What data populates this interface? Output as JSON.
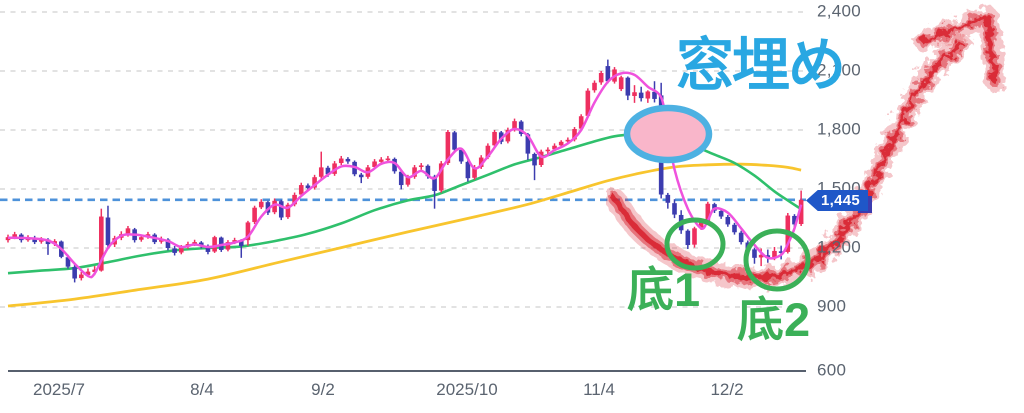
{
  "chart_data": {
    "type": "candlestick",
    "title": "",
    "y_axis": {
      "labels": [
        "2,400",
        "2,100",
        "1,800",
        "1,500",
        "1,200",
        "900",
        "600"
      ],
      "values": [
        2400,
        2100,
        1800,
        1500,
        1200,
        900,
        600
      ],
      "range": [
        600,
        2400
      ],
      "gridlines": "dashed"
    },
    "x_axis": {
      "labels": [
        "2025/7",
        "8/4",
        "9/2",
        "2025/10",
        "11/4",
        "12/2"
      ]
    },
    "current_price": {
      "label": "1,445",
      "value": 1445
    },
    "target_line_value": 1445,
    "candles": [
      [
        1240,
        1268,
        1228,
        1255
      ],
      [
        1255,
        1282,
        1245,
        1270
      ],
      [
        1268,
        1275,
        1228,
        1240
      ],
      [
        1240,
        1265,
        1232,
        1255
      ],
      [
        1253,
        1262,
        1220,
        1230
      ],
      [
        1232,
        1255,
        1222,
        1245
      ],
      [
        1243,
        1250,
        1165,
        1220
      ],
      [
        1222,
        1245,
        1210,
        1235
      ],
      [
        1233,
        1238,
        1148,
        1155
      ],
      [
        1153,
        1165,
        1095,
        1105
      ],
      [
        1103,
        1118,
        1025,
        1045
      ],
      [
        1047,
        1078,
        1035,
        1065
      ],
      [
        1063,
        1096,
        1052,
        1080
      ],
      [
        1078,
        1108,
        1062,
        1090
      ],
      [
        1085,
        1400,
        1080,
        1360
      ],
      [
        1355,
        1415,
        1205,
        1215
      ],
      [
        1218,
        1262,
        1205,
        1250
      ],
      [
        1252,
        1285,
        1240,
        1270
      ],
      [
        1268,
        1312,
        1258,
        1300
      ],
      [
        1295,
        1302,
        1228,
        1240
      ],
      [
        1242,
        1268,
        1232,
        1255
      ],
      [
        1257,
        1282,
        1247,
        1270
      ],
      [
        1268,
        1275,
        1220,
        1230
      ],
      [
        1232,
        1258,
        1222,
        1245
      ],
      [
        1243,
        1250,
        1188,
        1200
      ],
      [
        1198,
        1210,
        1162,
        1175
      ],
      [
        1177,
        1215,
        1168,
        1205
      ],
      [
        1207,
        1232,
        1196,
        1220
      ],
      [
        1222,
        1242,
        1210,
        1230
      ],
      [
        1228,
        1235,
        1198,
        1210
      ],
      [
        1208,
        1218,
        1168,
        1180
      ],
      [
        1182,
        1262,
        1175,
        1255
      ],
      [
        1253,
        1258,
        1180,
        1190
      ],
      [
        1192,
        1240,
        1183,
        1230
      ],
      [
        1232,
        1252,
        1220,
        1240
      ],
      [
        1238,
        1245,
        1150,
        1210
      ],
      [
        1240,
        1338,
        1212,
        1330
      ],
      [
        1332,
        1415,
        1322,
        1405
      ],
      [
        1407,
        1448,
        1398,
        1435
      ],
      [
        1433,
        1440,
        1368,
        1380
      ],
      [
        1382,
        1452,
        1372,
        1440
      ],
      [
        1438,
        1445,
        1342,
        1355
      ],
      [
        1357,
        1430,
        1348,
        1420
      ],
      [
        1422,
        1482,
        1412,
        1470
      ],
      [
        1472,
        1532,
        1462,
        1520
      ],
      [
        1518,
        1528,
        1492,
        1505
      ],
      [
        1507,
        1572,
        1497,
        1560
      ],
      [
        1562,
        1690,
        1552,
        1610
      ],
      [
        1608,
        1618,
        1562,
        1575
      ],
      [
        1577,
        1642,
        1567,
        1630
      ],
      [
        1632,
        1668,
        1622,
        1655
      ],
      [
        1653,
        1662,
        1628,
        1640
      ],
      [
        1638,
        1645,
        1565,
        1575
      ],
      [
        1573,
        1582,
        1530,
        1560
      ],
      [
        1562,
        1622,
        1552,
        1610
      ],
      [
        1612,
        1652,
        1602,
        1640
      ],
      [
        1638,
        1662,
        1628,
        1650
      ],
      [
        1652,
        1668,
        1642,
        1655
      ],
      [
        1653,
        1660,
        1578,
        1590
      ],
      [
        1588,
        1595,
        1498,
        1520
      ],
      [
        1522,
        1572,
        1512,
        1560
      ],
      [
        1562,
        1622,
        1552,
        1610
      ],
      [
        1612,
        1632,
        1598,
        1620
      ],
      [
        1618,
        1625,
        1552,
        1565
      ],
      [
        1563,
        1572,
        1400,
        1490
      ],
      [
        1492,
        1642,
        1482,
        1630
      ],
      [
        1632,
        1800,
        1622,
        1790
      ],
      [
        1788,
        1795,
        1685,
        1700
      ],
      [
        1698,
        1705,
        1628,
        1640
      ],
      [
        1638,
        1645,
        1538,
        1555
      ],
      [
        1557,
        1622,
        1547,
        1610
      ],
      [
        1612,
        1672,
        1602,
        1660
      ],
      [
        1662,
        1732,
        1652,
        1720
      ],
      [
        1722,
        1800,
        1712,
        1790
      ],
      [
        1788,
        1795,
        1728,
        1740
      ],
      [
        1742,
        1812,
        1732,
        1800
      ],
      [
        1802,
        1858,
        1792,
        1845
      ],
      [
        1843,
        1850,
        1768,
        1780
      ],
      [
        1778,
        1785,
        1648,
        1680
      ],
      [
        1678,
        1685,
        1545,
        1620
      ],
      [
        1622,
        1700,
        1612,
        1690
      ],
      [
        1692,
        1712,
        1678,
        1700
      ],
      [
        1702,
        1732,
        1692,
        1720
      ],
      [
        1722,
        1748,
        1712,
        1740
      ],
      [
        1742,
        1762,
        1728,
        1750
      ],
      [
        1752,
        1815,
        1742,
        1805
      ],
      [
        1807,
        1880,
        1797,
        1870
      ],
      [
        1872,
        2012,
        1862,
        2000
      ],
      [
        2002,
        2052,
        1990,
        2040
      ],
      [
        2042,
        2100,
        2030,
        2090
      ],
      [
        2125,
        2158,
        2038,
        2048
      ],
      [
        2046,
        2120,
        2036,
        2108
      ],
      [
        2008,
        2076,
        1998,
        2068
      ],
      [
        2066,
        2072,
        1952,
        1975
      ],
      [
        1973,
        2028,
        1938,
        1992
      ],
      [
        1990,
        2020,
        1945,
        1962
      ],
      [
        1960,
        2002,
        1938,
        1996
      ],
      [
        1994,
        2048,
        1940,
        1958
      ],
      [
        1976,
        2040,
        1452,
        1472
      ],
      [
        1470,
        1480,
        1400,
        1430
      ],
      [
        1428,
        1448,
        1352,
        1370
      ],
      [
        1368,
        1392,
        1272,
        1290
      ],
      [
        1288,
        1295,
        1195,
        1215
      ],
      [
        1217,
        1308,
        1202,
        1300
      ],
      [
        1302,
        1345,
        1292,
        1335
      ],
      [
        1337,
        1435,
        1327,
        1425
      ],
      [
        1423,
        1430,
        1378,
        1390
      ],
      [
        1388,
        1398,
        1348,
        1360
      ],
      [
        1358,
        1368,
        1308,
        1320
      ],
      [
        1318,
        1328,
        1268,
        1280
      ],
      [
        1278,
        1288,
        1218,
        1230
      ],
      [
        1228,
        1238,
        1182,
        1195
      ],
      [
        1193,
        1202,
        1120,
        1150
      ],
      [
        1152,
        1198,
        1108,
        1165
      ],
      [
        1163,
        1192,
        1125,
        1150
      ],
      [
        1152,
        1205,
        1138,
        1185
      ],
      [
        1183,
        1212,
        1142,
        1175
      ],
      [
        1180,
        1378,
        1172,
        1365
      ],
      [
        1363,
        1372,
        1305,
        1320
      ],
      [
        1322,
        1492,
        1312,
        1445
      ]
    ],
    "moving_averages": [
      {
        "name": "ma_short",
        "color": "#ef52dd",
        "points": [
          [
            0,
            1252
          ],
          [
            3,
            1250
          ],
          [
            6,
            1238
          ],
          [
            8,
            1195
          ],
          [
            10,
            1120
          ],
          [
            12,
            1058
          ],
          [
            13,
            1070
          ],
          [
            15,
            1200
          ],
          [
            17,
            1262
          ],
          [
            19,
            1268
          ],
          [
            21,
            1258
          ],
          [
            24,
            1235
          ],
          [
            26,
            1205
          ],
          [
            28,
            1218
          ],
          [
            30,
            1205
          ],
          [
            32,
            1215
          ],
          [
            34,
            1228
          ],
          [
            36,
            1258
          ],
          [
            38,
            1360
          ],
          [
            40,
            1420
          ],
          [
            42,
            1405
          ],
          [
            44,
            1465
          ],
          [
            46,
            1520
          ],
          [
            48,
            1572
          ],
          [
            50,
            1615
          ],
          [
            52,
            1612
          ],
          [
            54,
            1585
          ],
          [
            56,
            1628
          ],
          [
            58,
            1632
          ],
          [
            60,
            1560
          ],
          [
            62,
            1592
          ],
          [
            64,
            1555
          ],
          [
            66,
            1650
          ],
          [
            68,
            1705
          ],
          [
            70,
            1605
          ],
          [
            72,
            1665
          ],
          [
            74,
            1755
          ],
          [
            76,
            1805
          ],
          [
            78,
            1770
          ],
          [
            80,
            1665
          ],
          [
            82,
            1698
          ],
          [
            84,
            1732
          ],
          [
            86,
            1800
          ],
          [
            88,
            1940
          ],
          [
            90,
            2045
          ],
          [
            92,
            2088
          ],
          [
            94,
            2080
          ],
          [
            96,
            2020
          ],
          [
            98,
            1965
          ],
          [
            99,
            1800
          ],
          [
            100,
            1600
          ],
          [
            102,
            1400
          ],
          [
            104,
            1300
          ],
          [
            105,
            1340
          ],
          [
            106,
            1400
          ],
          [
            108,
            1380
          ],
          [
            110,
            1300
          ],
          [
            112,
            1215
          ],
          [
            114,
            1150
          ],
          [
            116,
            1165
          ],
          [
            117,
            1220
          ],
          [
            118,
            1300
          ],
          [
            119,
            1420
          ]
        ]
      },
      {
        "name": "ma_mid",
        "color": "#2fc06c",
        "points": [
          [
            0,
            1072
          ],
          [
            5,
            1085
          ],
          [
            10,
            1098
          ],
          [
            15,
            1128
          ],
          [
            20,
            1162
          ],
          [
            25,
            1188
          ],
          [
            30,
            1200
          ],
          [
            35,
            1208
          ],
          [
            40,
            1235
          ],
          [
            45,
            1272
          ],
          [
            50,
            1325
          ],
          [
            55,
            1392
          ],
          [
            60,
            1442
          ],
          [
            64,
            1468
          ],
          [
            68,
            1520
          ],
          [
            72,
            1572
          ],
          [
            76,
            1625
          ],
          [
            80,
            1662
          ],
          [
            84,
            1702
          ],
          [
            88,
            1742
          ],
          [
            91,
            1768
          ],
          [
            94,
            1778
          ],
          [
            97,
            1778
          ],
          [
            100,
            1758
          ],
          [
            103,
            1718
          ],
          [
            106,
            1675
          ],
          [
            109,
            1632
          ],
          [
            112,
            1568
          ],
          [
            115,
            1488
          ],
          [
            117,
            1442
          ],
          [
            119,
            1398
          ]
        ]
      },
      {
        "name": "ma_long",
        "color": "#f8c52e",
        "points": [
          [
            0,
            905
          ],
          [
            10,
            940
          ],
          [
            20,
            990
          ],
          [
            30,
            1042
          ],
          [
            40,
            1122
          ],
          [
            50,
            1202
          ],
          [
            60,
            1282
          ],
          [
            70,
            1358
          ],
          [
            78,
            1422
          ],
          [
            85,
            1492
          ],
          [
            90,
            1542
          ],
          [
            95,
            1582
          ],
          [
            100,
            1612
          ],
          [
            105,
            1623
          ],
          [
            110,
            1626
          ],
          [
            114,
            1620
          ],
          [
            117,
            1610
          ],
          [
            119,
            1596
          ]
        ]
      }
    ],
    "colors": {
      "up_candle": "#ee2f5f",
      "down_candle": "#3c3caf",
      "grid": "#d8d8d8",
      "axis": "#57606e",
      "target_line": "#4e92da",
      "label": "#5b6470",
      "tag_bg": "#1f57c8",
      "tag_text": "#ffffff"
    },
    "annotations": {
      "gap_label": "窓埋め",
      "bottom1_label": "底1",
      "bottom2_label": "底2",
      "gap_text_color": "#29a7e2",
      "gap_ellipse_fill": "#f9b6ca",
      "gap_ellipse_stroke": "#4db1e2",
      "bottom_color": "#3bb058",
      "arrow_color": "#d8232f"
    }
  }
}
